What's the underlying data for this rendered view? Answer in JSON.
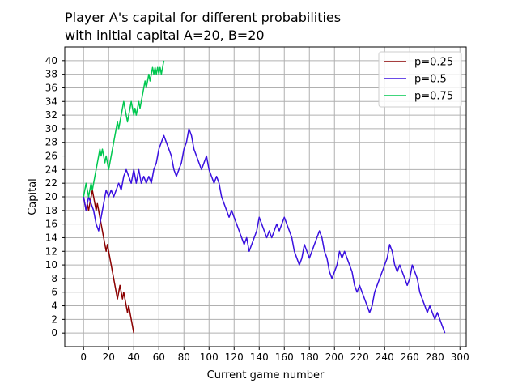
{
  "chart_data": {
    "type": "line",
    "title_line1": "Player A's capital for different probabilities",
    "title_line2": "with initial capital A=20, B=20",
    "xlabel": "Current game number",
    "ylabel": "Capital",
    "xlim": [
      -15,
      305
    ],
    "ylim": [
      -2,
      42
    ],
    "xticks": [
      0,
      20,
      40,
      60,
      80,
      100,
      120,
      140,
      160,
      180,
      200,
      220,
      240,
      260,
      280,
      300
    ],
    "yticks": [
      0,
      2,
      4,
      6,
      8,
      10,
      12,
      14,
      16,
      18,
      20,
      22,
      24,
      26,
      28,
      30,
      32,
      34,
      36,
      38,
      40
    ],
    "grid": true,
    "legend_position": "upper-right",
    "series": [
      {
        "name": "p=0.25",
        "color": "#8b0000",
        "points": [
          [
            0,
            20
          ],
          [
            1,
            19
          ],
          [
            2,
            18
          ],
          [
            3,
            19
          ],
          [
            4,
            18
          ],
          [
            5,
            19
          ],
          [
            6,
            20
          ],
          [
            7,
            21
          ],
          [
            8,
            20
          ],
          [
            9,
            19
          ],
          [
            10,
            18
          ],
          [
            11,
            19
          ],
          [
            12,
            18
          ],
          [
            13,
            17
          ],
          [
            14,
            16
          ],
          [
            15,
            15
          ],
          [
            16,
            14
          ],
          [
            17,
            13
          ],
          [
            18,
            12
          ],
          [
            19,
            13
          ],
          [
            20,
            12
          ],
          [
            21,
            11
          ],
          [
            22,
            10
          ],
          [
            23,
            9
          ],
          [
            24,
            8
          ],
          [
            25,
            7
          ],
          [
            26,
            6
          ],
          [
            27,
            5
          ],
          [
            28,
            6
          ],
          [
            29,
            7
          ],
          [
            30,
            6
          ],
          [
            31,
            5
          ],
          [
            32,
            6
          ],
          [
            33,
            5
          ],
          [
            34,
            4
          ],
          [
            35,
            3
          ],
          [
            36,
            4
          ],
          [
            37,
            3
          ],
          [
            38,
            2
          ],
          [
            39,
            1
          ],
          [
            40,
            0
          ]
        ]
      },
      {
        "name": "p=0.5",
        "color": "#3a10e0",
        "points": [
          [
            0,
            20
          ],
          [
            2,
            18
          ],
          [
            4,
            20
          ],
          [
            6,
            19
          ],
          [
            8,
            18
          ],
          [
            10,
            16
          ],
          [
            12,
            15
          ],
          [
            14,
            17
          ],
          [
            16,
            19
          ],
          [
            18,
            21
          ],
          [
            20,
            20
          ],
          [
            22,
            21
          ],
          [
            24,
            20
          ],
          [
            26,
            21
          ],
          [
            28,
            22
          ],
          [
            30,
            21
          ],
          [
            32,
            23
          ],
          [
            34,
            24
          ],
          [
            36,
            23
          ],
          [
            38,
            22
          ],
          [
            40,
            24
          ],
          [
            42,
            22
          ],
          [
            44,
            24
          ],
          [
            46,
            22
          ],
          [
            48,
            23
          ],
          [
            50,
            22
          ],
          [
            52,
            23
          ],
          [
            54,
            22
          ],
          [
            56,
            24
          ],
          [
            58,
            25
          ],
          [
            60,
            27
          ],
          [
            62,
            28
          ],
          [
            64,
            29
          ],
          [
            66,
            28
          ],
          [
            68,
            27
          ],
          [
            70,
            26
          ],
          [
            72,
            24
          ],
          [
            74,
            23
          ],
          [
            76,
            24
          ],
          [
            78,
            25
          ],
          [
            80,
            27
          ],
          [
            82,
            28
          ],
          [
            84,
            30
          ],
          [
            86,
            29
          ],
          [
            88,
            27
          ],
          [
            90,
            26
          ],
          [
            92,
            25
          ],
          [
            94,
            24
          ],
          [
            96,
            25
          ],
          [
            98,
            26
          ],
          [
            100,
            24
          ],
          [
            102,
            23
          ],
          [
            104,
            22
          ],
          [
            106,
            23
          ],
          [
            108,
            22
          ],
          [
            110,
            20
          ],
          [
            112,
            19
          ],
          [
            114,
            18
          ],
          [
            116,
            17
          ],
          [
            118,
            18
          ],
          [
            120,
            17
          ],
          [
            122,
            16
          ],
          [
            124,
            15
          ],
          [
            126,
            14
          ],
          [
            128,
            13
          ],
          [
            130,
            14
          ],
          [
            132,
            12
          ],
          [
            134,
            13
          ],
          [
            136,
            14
          ],
          [
            138,
            15
          ],
          [
            140,
            17
          ],
          [
            142,
            16
          ],
          [
            144,
            15
          ],
          [
            146,
            14
          ],
          [
            148,
            15
          ],
          [
            150,
            14
          ],
          [
            152,
            15
          ],
          [
            154,
            16
          ],
          [
            156,
            15
          ],
          [
            158,
            16
          ],
          [
            160,
            17
          ],
          [
            162,
            16
          ],
          [
            164,
            15
          ],
          [
            166,
            14
          ],
          [
            168,
            12
          ],
          [
            170,
            11
          ],
          [
            172,
            10
          ],
          [
            174,
            11
          ],
          [
            176,
            13
          ],
          [
            178,
            12
          ],
          [
            180,
            11
          ],
          [
            182,
            12
          ],
          [
            184,
            13
          ],
          [
            186,
            14
          ],
          [
            188,
            15
          ],
          [
            190,
            14
          ],
          [
            192,
            12
          ],
          [
            194,
            11
          ],
          [
            196,
            9
          ],
          [
            198,
            8
          ],
          [
            200,
            9
          ],
          [
            202,
            10
          ],
          [
            204,
            12
          ],
          [
            206,
            11
          ],
          [
            208,
            12
          ],
          [
            210,
            11
          ],
          [
            212,
            10
          ],
          [
            214,
            9
          ],
          [
            216,
            7
          ],
          [
            218,
            6
          ],
          [
            220,
            7
          ],
          [
            222,
            6
          ],
          [
            224,
            5
          ],
          [
            226,
            4
          ],
          [
            228,
            3
          ],
          [
            230,
            4
          ],
          [
            232,
            6
          ],
          [
            234,
            7
          ],
          [
            236,
            8
          ],
          [
            238,
            9
          ],
          [
            240,
            10
          ],
          [
            242,
            11
          ],
          [
            244,
            13
          ],
          [
            246,
            12
          ],
          [
            248,
            10
          ],
          [
            250,
            9
          ],
          [
            252,
            10
          ],
          [
            254,
            9
          ],
          [
            256,
            8
          ],
          [
            258,
            7
          ],
          [
            260,
            8
          ],
          [
            262,
            10
          ],
          [
            264,
            9
          ],
          [
            266,
            8
          ],
          [
            268,
            6
          ],
          [
            270,
            5
          ],
          [
            272,
            4
          ],
          [
            274,
            3
          ],
          [
            276,
            4
          ],
          [
            278,
            3
          ],
          [
            280,
            2
          ],
          [
            282,
            3
          ],
          [
            284,
            2
          ],
          [
            286,
            1
          ],
          [
            288,
            0
          ]
        ]
      },
      {
        "name": "p=0.75",
        "color": "#00c850",
        "points": [
          [
            0,
            20
          ],
          [
            1,
            21
          ],
          [
            2,
            22
          ],
          [
            3,
            21
          ],
          [
            4,
            20
          ],
          [
            5,
            21
          ],
          [
            6,
            22
          ],
          [
            7,
            21
          ],
          [
            8,
            22
          ],
          [
            9,
            23
          ],
          [
            10,
            24
          ],
          [
            11,
            25
          ],
          [
            12,
            26
          ],
          [
            13,
            27
          ],
          [
            14,
            26
          ],
          [
            15,
            27
          ],
          [
            16,
            26
          ],
          [
            17,
            25
          ],
          [
            18,
            26
          ],
          [
            19,
            25
          ],
          [
            20,
            24
          ],
          [
            21,
            25
          ],
          [
            22,
            26
          ],
          [
            23,
            27
          ],
          [
            24,
            28
          ],
          [
            25,
            29
          ],
          [
            26,
            30
          ],
          [
            27,
            31
          ],
          [
            28,
            30
          ],
          [
            29,
            31
          ],
          [
            30,
            32
          ],
          [
            31,
            33
          ],
          [
            32,
            34
          ],
          [
            33,
            33
          ],
          [
            34,
            32
          ],
          [
            35,
            31
          ],
          [
            36,
            32
          ],
          [
            37,
            33
          ],
          [
            38,
            34
          ],
          [
            39,
            33
          ],
          [
            40,
            32
          ],
          [
            41,
            33
          ],
          [
            42,
            32
          ],
          [
            43,
            33
          ],
          [
            44,
            34
          ],
          [
            45,
            33
          ],
          [
            46,
            34
          ],
          [
            47,
            35
          ],
          [
            48,
            36
          ],
          [
            49,
            37
          ],
          [
            50,
            36
          ],
          [
            51,
            37
          ],
          [
            52,
            38
          ],
          [
            53,
            37
          ],
          [
            54,
            38
          ],
          [
            55,
            39
          ],
          [
            56,
            38
          ],
          [
            57,
            39
          ],
          [
            58,
            38
          ],
          [
            59,
            39
          ],
          [
            60,
            38
          ],
          [
            61,
            39
          ],
          [
            62,
            38
          ],
          [
            63,
            39
          ],
          [
            64,
            40
          ]
        ]
      }
    ]
  }
}
